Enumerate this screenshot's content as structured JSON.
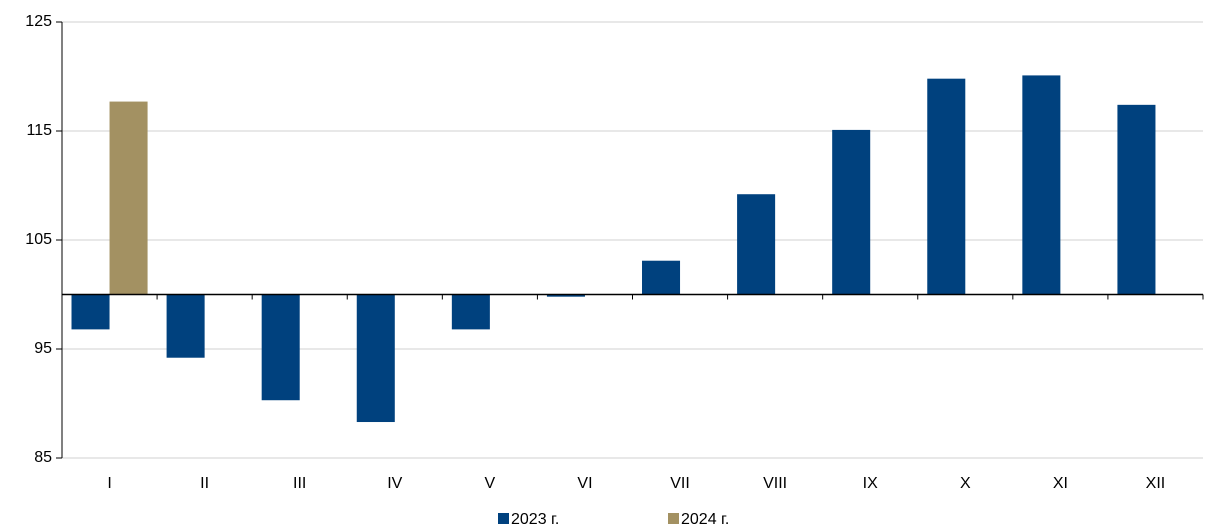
{
  "chart_data": {
    "type": "bar",
    "categories": [
      "I",
      "II",
      "III",
      "IV",
      "V",
      "VI",
      "VII",
      "VIII",
      "IX",
      "X",
      "XI",
      "XII"
    ],
    "series": [
      {
        "name": "2023 г.",
        "color": "#00417e",
        "values": [
          96.8,
          94.2,
          90.3,
          88.3,
          96.8,
          99.8,
          103.1,
          109.2,
          115.1,
          119.8,
          120.1,
          117.4
        ]
      },
      {
        "name": "2024 г.",
        "color": "#a39162",
        "values": [
          117.7,
          null,
          null,
          null,
          null,
          null,
          null,
          null,
          null,
          null,
          null,
          null
        ]
      }
    ],
    "ylim": [
      85,
      125
    ],
    "yticks": [
      85,
      95,
      105,
      115,
      125
    ],
    "grid": true,
    "x_axis_at": 100,
    "legend": "bottom"
  }
}
